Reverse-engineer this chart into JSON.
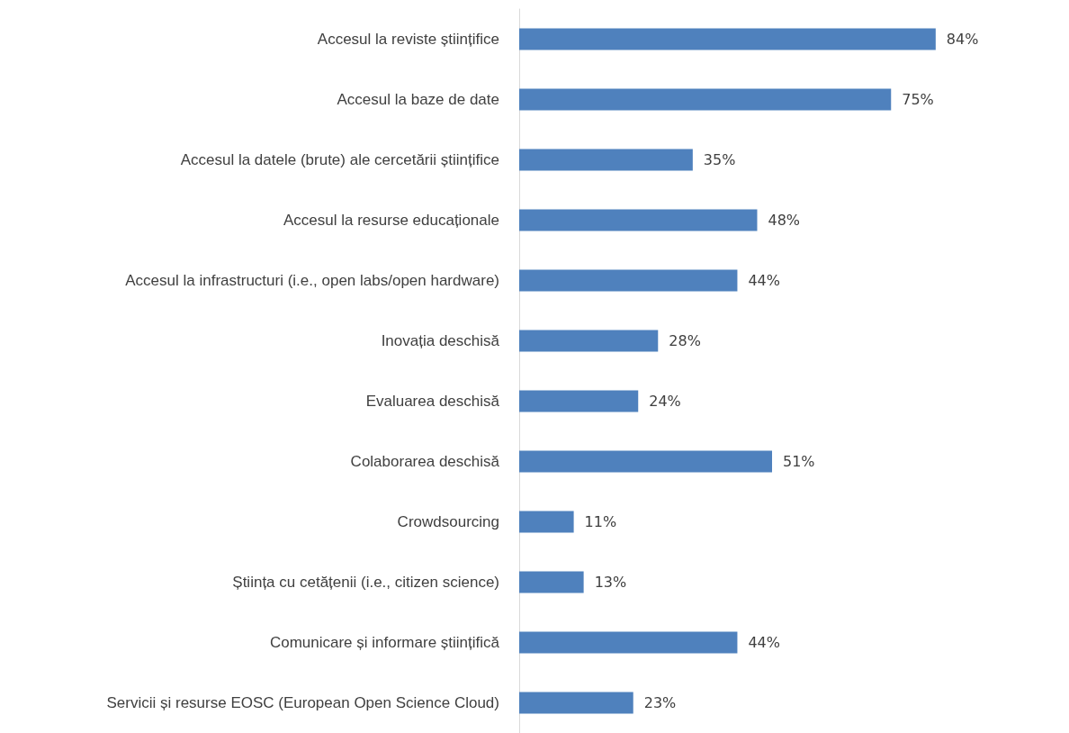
{
  "chart_data": {
    "type": "bar",
    "orientation": "horizontal",
    "categories": [
      "Accesul la reviste științifice",
      "Accesul la baze de date",
      "Accesul la datele (brute) ale cercetării științifice",
      "Accesul la resurse educaționale",
      "Accesul la infrastructuri (i.e., open labs/open hardware)",
      "Inovația deschisă",
      "Evaluarea deschisă",
      "Colaborarea deschisă",
      "Crowdsourcing",
      "Știința cu cetățenii (i.e., citizen science)",
      "Comunicare și informare științifică",
      "Servicii și resurse EOSC (European Open Science Cloud)"
    ],
    "values": [
      84,
      75,
      35,
      48,
      44,
      28,
      24,
      51,
      11,
      13,
      44,
      23
    ],
    "value_labels": [
      "84%",
      "75%",
      "35%",
      "48%",
      "44%",
      "28%",
      "24%",
      "51%",
      "11%",
      "13%",
      "44%",
      "23%"
    ],
    "color": "#4f81bd"
  }
}
